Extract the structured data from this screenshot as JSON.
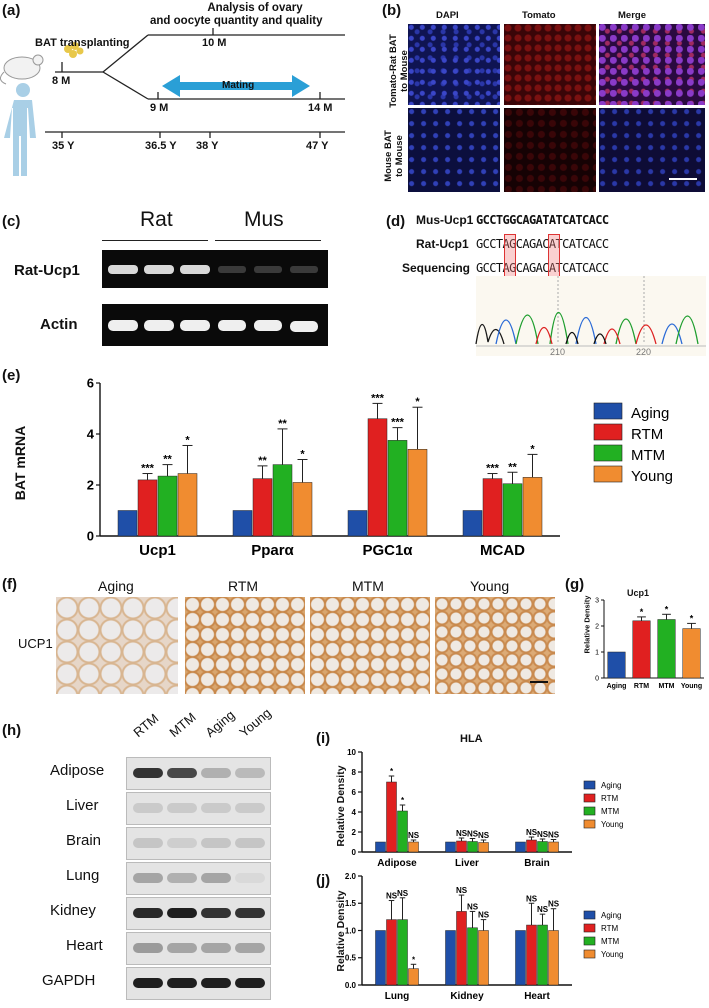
{
  "panel_labels": {
    "a": "(a)",
    "b": "(b)",
    "c": "(c)",
    "d": "(d)",
    "e": "(e)",
    "f": "(f)",
    "g": "(g)",
    "h": "(h)",
    "i": "(i)",
    "j": "(j)"
  },
  "panel_a": {
    "analysis": "Analysis of ovary",
    "analysis2": "and oocyte quantity and quality",
    "transplant": "BAT transplanting",
    "m8": "8 M",
    "m10": "10 M",
    "mating": "Mating",
    "m9": "9 M",
    "m14": "14 M",
    "y35": "35 Y",
    "y365": "36.5 Y",
    "y38": "38 Y",
    "y47": "47 Y"
  },
  "panel_b": {
    "cols": [
      "DAPI",
      "Tomato",
      "Merge"
    ],
    "row1": [
      "Tomato-Rat BAT",
      "to Mouse"
    ],
    "row2": [
      "Mouse BAT",
      "to Mouse"
    ]
  },
  "panel_c": {
    "groups": [
      "Rat",
      "Mus"
    ],
    "rows": [
      "Rat-Ucp1",
      "Actin"
    ]
  },
  "panel_d": {
    "rows": [
      {
        "label": "Mus-Ucp1",
        "seq": "GCCTGGCAGATATCATCACC"
      },
      {
        "label": "Rat-Ucp1",
        "seq": "GCCTAGCAGACATCATCACC"
      },
      {
        "label": "Sequencing",
        "seq": "GCCTAGCAGACATCATCACC"
      }
    ],
    "ticks": [
      "210",
      "220"
    ]
  },
  "panel_f": {
    "groups": [
      "Aging",
      "RTM",
      "MTM",
      "Young"
    ],
    "row_label": "UCP1"
  },
  "panel_h": {
    "lanes": [
      "RTM",
      "MTM",
      "Aging",
      "Young"
    ],
    "tissues": [
      "Adipose",
      "Liver",
      "Brain",
      "Lung",
      "Kidney",
      "Heart",
      "GAPDH"
    ]
  },
  "chart_data": [
    {
      "id": "e",
      "type": "bar",
      "ylabel": "BAT mRNA",
      "ylim": [
        0,
        6
      ],
      "yticks": [
        "0",
        "2",
        "4",
        "6"
      ],
      "categories": [
        "Ucp1",
        "Pparα",
        "PGC1α",
        "MCAD"
      ],
      "legend_placement": "right",
      "series": [
        {
          "name": "Aging",
          "values": [
            1,
            1,
            1,
            1
          ],
          "err": [
            0,
            0,
            0,
            0
          ],
          "sig": [
            "",
            "",
            "",
            ""
          ]
        },
        {
          "name": "RTM",
          "values": [
            2.2,
            2.25,
            4.6,
            2.25
          ],
          "err": [
            0.25,
            0.5,
            0.6,
            0.2
          ],
          "sig": [
            "***",
            "**",
            "***",
            "***"
          ]
        },
        {
          "name": "MTM",
          "values": [
            2.35,
            2.8,
            3.75,
            2.05
          ],
          "err": [
            0.45,
            1.4,
            0.5,
            0.45
          ],
          "sig": [
            "**",
            "**",
            "***",
            "**"
          ]
        },
        {
          "name": "Young",
          "values": [
            2.45,
            2.1,
            3.4,
            2.3
          ],
          "err": [
            1.1,
            0.9,
            1.65,
            0.9
          ],
          "sig": [
            "*",
            "*",
            "*",
            "*"
          ]
        }
      ],
      "colors": [
        "#1f4fa8",
        "#e02020",
        "#22b022",
        "#f08c30"
      ]
    },
    {
      "id": "g",
      "type": "bar",
      "title": "Ucp1",
      "ylabel": "Relative Density",
      "ylim": [
        0,
        3
      ],
      "yticks": [
        "0",
        "1",
        "2",
        "3"
      ],
      "categories": [
        "Aging",
        "RTM",
        "MTM",
        "Young"
      ],
      "values": [
        1,
        2.2,
        2.25,
        1.9
      ],
      "err": [
        0,
        0.15,
        0.2,
        0.2
      ],
      "sig": [
        "",
        "*",
        "*",
        "*"
      ],
      "colors": [
        "#1f4fa8",
        "#e02020",
        "#22b022",
        "#f08c30"
      ]
    },
    {
      "id": "i",
      "type": "bar",
      "title": "HLA",
      "ylabel": "Relative Density",
      "ylim": [
        0,
        10
      ],
      "yticks": [
        "0",
        "2",
        "4",
        "6",
        "8",
        "10"
      ],
      "categories": [
        "Adipose",
        "Liver",
        "Brain"
      ],
      "legend_placement": "right",
      "series": [
        {
          "name": "Aging",
          "values": [
            1,
            1,
            1
          ],
          "err": [
            0,
            0,
            0
          ],
          "sig": [
            "",
            "",
            ""
          ]
        },
        {
          "name": "RTM",
          "values": [
            7,
            1.1,
            1.2
          ],
          "err": [
            0.6,
            0.3,
            0.3
          ],
          "sig": [
            "*",
            "NS",
            "NS"
          ]
        },
        {
          "name": "MTM",
          "values": [
            4.1,
            1.05,
            1.05
          ],
          "err": [
            0.6,
            0.3,
            0.25
          ],
          "sig": [
            "*",
            "NS",
            "NS"
          ]
        },
        {
          "name": "Young",
          "values": [
            1,
            0.95,
            1
          ],
          "err": [
            0.2,
            0.25,
            0.25
          ],
          "sig": [
            "NS",
            "NS",
            "NS"
          ]
        }
      ],
      "colors": [
        "#1f4fa8",
        "#e02020",
        "#22b022",
        "#f08c30"
      ]
    },
    {
      "id": "j",
      "type": "bar",
      "ylabel": "Relative Density",
      "ylim": [
        0,
        2.0
      ],
      "yticks": [
        "0.0",
        "0.5",
        "1.0",
        "1.5",
        "2.0"
      ],
      "categories": [
        "Lung",
        "Kidney",
        "Heart"
      ],
      "legend_placement": "right",
      "series": [
        {
          "name": "Aging",
          "values": [
            1,
            1,
            1
          ],
          "err": [
            0,
            0,
            0
          ],
          "sig": [
            "",
            "",
            ""
          ]
        },
        {
          "name": "RTM",
          "values": [
            1.2,
            1.35,
            1.1
          ],
          "err": [
            0.35,
            0.3,
            0.4
          ],
          "sig": [
            "NS",
            "NS",
            "NS"
          ]
        },
        {
          "name": "MTM",
          "values": [
            1.2,
            1.05,
            1.1
          ],
          "err": [
            0.4,
            0.3,
            0.2
          ],
          "sig": [
            "NS",
            "NS",
            "NS"
          ]
        },
        {
          "name": "Young",
          "values": [
            0.3,
            1.0,
            1.0
          ],
          "err": [
            0.08,
            0.2,
            0.4
          ],
          "sig": [
            "*",
            "NS",
            "NS"
          ]
        }
      ],
      "colors": [
        "#1f4fa8",
        "#e02020",
        "#22b022",
        "#f08c30"
      ]
    }
  ]
}
